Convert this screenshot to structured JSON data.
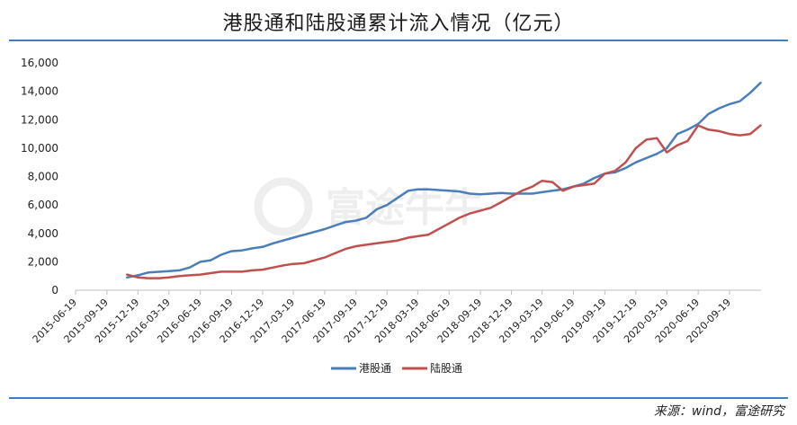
{
  "title": "港股通和陆股通累计流入情况（亿元）",
  "source": "来源：wind，富途研究",
  "watermark": {
    "text": "富途牛牛"
  },
  "chart_data": {
    "type": "line",
    "title": "港股通和陆股通累计流入情况（亿元）",
    "xlabel": "",
    "ylabel": "",
    "ylim": [
      0,
      16000
    ],
    "yticks": [
      "0",
      "2,000",
      "4,000",
      "6,000",
      "8,000",
      "10,000",
      "12,000",
      "14,000",
      "16,000"
    ],
    "xticks": [
      "2015-06-19",
      "2015-09-19",
      "2015-12-19",
      "2016-03-19",
      "2016-06-19",
      "2016-09-19",
      "2016-12-19",
      "2017-03-19",
      "2017-06-19",
      "2017-09-19",
      "2017-12-19",
      "2018-03-19",
      "2018-06-19",
      "2018-09-19",
      "2018-12-19",
      "2019-03-19",
      "2019-06-19",
      "2019-09-19",
      "2019-12-19",
      "2020-03-19",
      "2020-06-19",
      "2020-09-19"
    ],
    "grid": false,
    "legend": "bottom",
    "series": [
      {
        "name": "港股通",
        "color": "#4a7ebb",
        "points": [
          [
            "2015-11-17",
            900
          ],
          [
            "2015-12-19",
            1050
          ],
          [
            "2016-01-19",
            1250
          ],
          [
            "2016-03-19",
            1350
          ],
          [
            "2016-04-19",
            1400
          ],
          [
            "2016-05-19",
            1600
          ],
          [
            "2016-06-19",
            2000
          ],
          [
            "2016-07-19",
            2100
          ],
          [
            "2016-08-19",
            2500
          ],
          [
            "2016-09-19",
            2750
          ],
          [
            "2016-10-19",
            2800
          ],
          [
            "2016-11-19",
            2950
          ],
          [
            "2016-12-19",
            3050
          ],
          [
            "2017-01-19",
            3300
          ],
          [
            "2017-03-19",
            3700
          ],
          [
            "2017-04-19",
            3900
          ],
          [
            "2017-06-19",
            4300
          ],
          [
            "2017-07-19",
            4550
          ],
          [
            "2017-08-19",
            4800
          ],
          [
            "2017-09-19",
            4900
          ],
          [
            "2017-10-19",
            5100
          ],
          [
            "2017-11-19",
            5700
          ],
          [
            "2017-12-19",
            6000
          ],
          [
            "2018-01-19",
            6500
          ],
          [
            "2018-02-19",
            7000
          ],
          [
            "2018-03-19",
            7100
          ],
          [
            "2018-04-19",
            7100
          ],
          [
            "2018-05-19",
            7050
          ],
          [
            "2018-06-19",
            7000
          ],
          [
            "2018-07-19",
            6950
          ],
          [
            "2018-08-19",
            6800
          ],
          [
            "2018-09-19",
            6750
          ],
          [
            "2018-10-19",
            6800
          ],
          [
            "2018-11-19",
            6850
          ],
          [
            "2018-12-19",
            6800
          ],
          [
            "2019-01-19",
            6800
          ],
          [
            "2019-02-19",
            6800
          ],
          [
            "2019-03-19",
            6900
          ],
          [
            "2019-04-19",
            7000
          ],
          [
            "2019-05-19",
            7100
          ],
          [
            "2019-06-19",
            7300
          ],
          [
            "2019-07-19",
            7500
          ],
          [
            "2019-08-19",
            7900
          ],
          [
            "2019-09-19",
            8200
          ],
          [
            "2019-10-19",
            8300
          ],
          [
            "2019-11-19",
            8600
          ],
          [
            "2019-12-19",
            9000
          ],
          [
            "2020-01-19",
            9300
          ],
          [
            "2020-02-19",
            9600
          ],
          [
            "2020-03-19",
            10000
          ],
          [
            "2020-04-19",
            11000
          ],
          [
            "2020-05-19",
            11300
          ],
          [
            "2020-06-19",
            11700
          ],
          [
            "2020-07-19",
            12400
          ],
          [
            "2020-08-19",
            12800
          ],
          [
            "2020-09-19",
            13100
          ],
          [
            "2020-10-19",
            13300
          ],
          [
            "2020-11-19",
            13900
          ],
          [
            "2020-12-19",
            14600
          ]
        ]
      },
      {
        "name": "陆股通",
        "color": "#c0504d",
        "points": [
          [
            "2015-11-17",
            1100
          ],
          [
            "2015-12-19",
            900
          ],
          [
            "2016-01-19",
            850
          ],
          [
            "2016-02-19",
            850
          ],
          [
            "2016-03-19",
            900
          ],
          [
            "2016-04-19",
            1000
          ],
          [
            "2016-05-19",
            1050
          ],
          [
            "2016-06-19",
            1100
          ],
          [
            "2016-07-19",
            1200
          ],
          [
            "2016-08-19",
            1300
          ],
          [
            "2016-09-19",
            1300
          ],
          [
            "2016-10-19",
            1300
          ],
          [
            "2016-11-19",
            1400
          ],
          [
            "2016-12-19",
            1450
          ],
          [
            "2017-01-19",
            1600
          ],
          [
            "2017-02-19",
            1750
          ],
          [
            "2017-03-19",
            1850
          ],
          [
            "2017-04-19",
            1900
          ],
          [
            "2017-05-19",
            2100
          ],
          [
            "2017-06-19",
            2300
          ],
          [
            "2017-07-19",
            2600
          ],
          [
            "2017-08-19",
            2900
          ],
          [
            "2017-09-19",
            3100
          ],
          [
            "2017-10-19",
            3200
          ],
          [
            "2017-11-19",
            3300
          ],
          [
            "2017-12-19",
            3400
          ],
          [
            "2018-01-19",
            3500
          ],
          [
            "2018-02-19",
            3700
          ],
          [
            "2018-03-19",
            3800
          ],
          [
            "2018-04-19",
            3900
          ],
          [
            "2018-05-19",
            4300
          ],
          [
            "2018-06-19",
            4700
          ],
          [
            "2018-07-19",
            5100
          ],
          [
            "2018-08-19",
            5400
          ],
          [
            "2018-09-19",
            5600
          ],
          [
            "2018-10-19",
            5800
          ],
          [
            "2018-11-19",
            6200
          ],
          [
            "2018-12-19",
            6600
          ],
          [
            "2019-01-19",
            7000
          ],
          [
            "2019-02-19",
            7300
          ],
          [
            "2019-03-19",
            7700
          ],
          [
            "2019-04-19",
            7600
          ],
          [
            "2019-05-19",
            7000
          ],
          [
            "2019-06-19",
            7300
          ],
          [
            "2019-07-19",
            7400
          ],
          [
            "2019-08-19",
            7500
          ],
          [
            "2019-09-19",
            8200
          ],
          [
            "2019-10-19",
            8400
          ],
          [
            "2019-11-19",
            9000
          ],
          [
            "2019-12-19",
            10000
          ],
          [
            "2020-01-19",
            10600
          ],
          [
            "2020-02-19",
            10700
          ],
          [
            "2020-03-19",
            9700
          ],
          [
            "2020-04-19",
            10200
          ],
          [
            "2020-05-19",
            10500
          ],
          [
            "2020-06-19",
            11600
          ],
          [
            "2020-07-19",
            11300
          ],
          [
            "2020-08-19",
            11200
          ],
          [
            "2020-09-19",
            11000
          ],
          [
            "2020-10-19",
            10900
          ],
          [
            "2020-11-19",
            11000
          ],
          [
            "2020-12-19",
            11600
          ]
        ]
      }
    ]
  }
}
